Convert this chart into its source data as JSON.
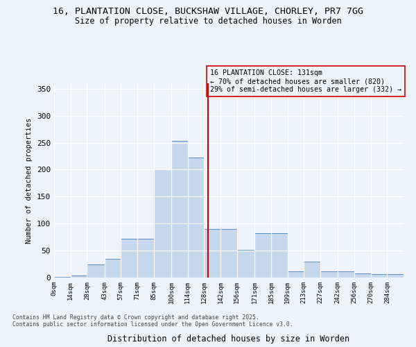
{
  "title_line1": "16, PLANTATION CLOSE, BUCKSHAW VILLAGE, CHORLEY, PR7 7GG",
  "title_line2": "Size of property relative to detached houses in Worden",
  "xlabel": "Distribution of detached houses by size in Worden",
  "ylabel": "Number of detached properties",
  "annotation_line1": "16 PLANTATION CLOSE: 131sqm",
  "annotation_line2": "← 70% of detached houses are smaller (820)",
  "annotation_line3": "29% of semi-detached houses are larger (332) →",
  "footer_line1": "Contains HM Land Registry data © Crown copyright and database right 2025.",
  "footer_line2": "Contains public sector information licensed under the Open Government Licence v3.0.",
  "bin_labels": [
    "0sqm",
    "14sqm",
    "28sqm",
    "43sqm",
    "57sqm",
    "71sqm",
    "85sqm",
    "100sqm",
    "114sqm",
    "128sqm",
    "142sqm",
    "156sqm",
    "171sqm",
    "185sqm",
    "199sqm",
    "213sqm",
    "227sqm",
    "242sqm",
    "256sqm",
    "270sqm",
    "284sqm"
  ],
  "bar_values": [
    1,
    4,
    25,
    35,
    72,
    72,
    201,
    253,
    222,
    90,
    90,
    52,
    82,
    82,
    12,
    30,
    11,
    11,
    8,
    7,
    6
  ],
  "bin_edges": [
    0,
    14,
    28,
    43,
    57,
    71,
    85,
    100,
    114,
    128,
    142,
    156,
    171,
    185,
    199,
    213,
    227,
    242,
    256,
    270,
    284,
    298
  ],
  "property_size": 131,
  "bar_facecolor": "#c5d8ed",
  "bar_edgecolor": "#5b8ec4",
  "vline_color": "#cc0000",
  "annotation_box_edgecolor": "#cc0000",
  "background_color": "#eef2fb",
  "grid_color": "#ffffff",
  "ylim": [
    0,
    360
  ],
  "yticks": [
    0,
    50,
    100,
    150,
    200,
    250,
    300,
    350
  ]
}
